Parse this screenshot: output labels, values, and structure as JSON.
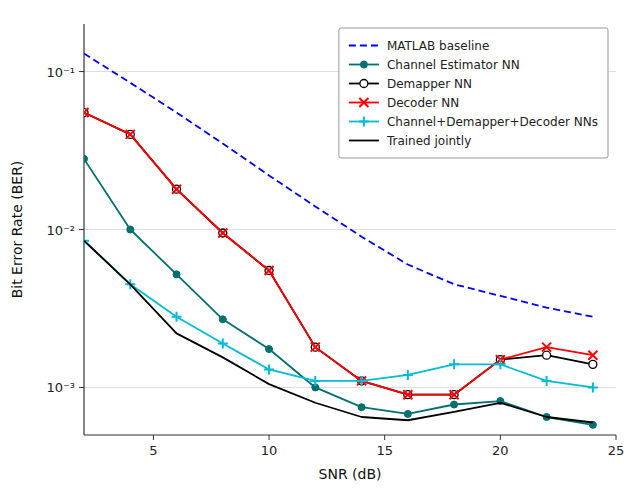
{
  "chart_data": {
    "type": "line",
    "x_label": "SNR (dB)",
    "y_label": "Bit Error Rate (BER)",
    "x": [
      2,
      4,
      6,
      8,
      10,
      12,
      14,
      16,
      18,
      20,
      22,
      24
    ],
    "series": [
      {
        "name": "MATLAB baseline",
        "color": "#0000ff",
        "marker": "none",
        "line_style": "dashed",
        "values": [
          0.13,
          0.085,
          0.055,
          0.035,
          0.022,
          0.014,
          0.009,
          0.006,
          0.0045,
          0.0038,
          0.0032,
          0.0028
        ]
      },
      {
        "name": "Channel Estimator NN",
        "color": "#007070",
        "marker": "circle",
        "line_style": "solid",
        "values": [
          0.028,
          0.01,
          0.0052,
          0.0027,
          0.00175,
          0.001,
          0.00075,
          0.00068,
          0.00078,
          0.00082,
          0.00065,
          0.00058
        ]
      },
      {
        "name": "Demapper NN",
        "color": "#000000",
        "marker": "open-circle",
        "line_style": "solid",
        "values": [
          0.055,
          0.04,
          0.018,
          0.0095,
          0.0055,
          0.0018,
          0.0011,
          0.0009,
          0.0009,
          0.0015,
          0.0016,
          0.0014
        ]
      },
      {
        "name": "Decoder NN",
        "color": "#ff0000",
        "marker": "x",
        "line_style": "solid",
        "values": [
          0.055,
          0.04,
          0.018,
          0.0095,
          0.0055,
          0.0018,
          0.0011,
          0.0009,
          0.0009,
          0.0015,
          0.0018,
          0.0016
        ]
      },
      {
        "name": "Channel+Demapper+Decoder NNs",
        "color": "#00bcd4",
        "marker": "plus",
        "line_style": "solid",
        "values": [
          0.0085,
          0.0045,
          0.0028,
          0.0019,
          0.0013,
          0.0011,
          0.0011,
          0.0012,
          0.0014,
          0.0014,
          0.0011,
          0.001
        ]
      },
      {
        "name": "Trained jointly",
        "color": "#000000",
        "marker": "none",
        "line_style": "solid",
        "values": [
          0.0085,
          0.0045,
          0.0022,
          0.00155,
          0.00105,
          0.0008,
          0.00065,
          0.00062,
          0.0007,
          0.0008,
          0.00065,
          0.0006
        ]
      }
    ],
    "xlim": [
      2,
      25
    ],
    "xticks": [
      5,
      10,
      15,
      20,
      25
    ],
    "ylim": [
      0.0005,
      0.2
    ],
    "yticks": [
      {
        "value": 0.001,
        "label": "10⁻³"
      },
      {
        "value": 0.01,
        "label": "10⁻²"
      },
      {
        "value": 0.1,
        "label": "10⁻¹"
      }
    ],
    "log": "y",
    "grid": true,
    "legend": "upper right"
  }
}
